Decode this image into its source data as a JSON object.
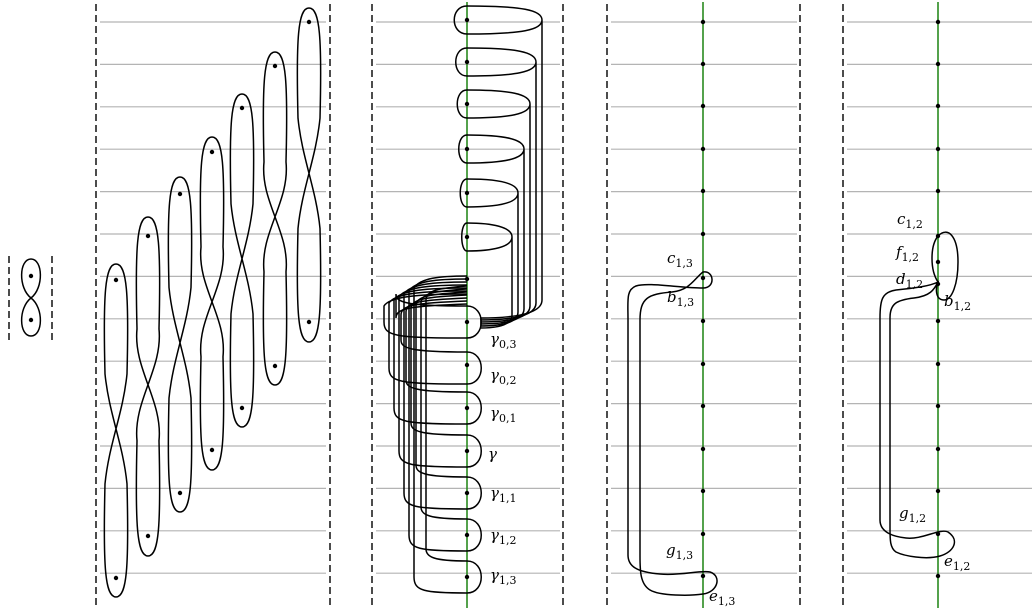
{
  "labels": {
    "gamma_0_3": {
      "base": "γ",
      "sub": "0,3"
    },
    "gamma_0_2": {
      "base": "γ",
      "sub": "0,2"
    },
    "gamma_0_1": {
      "base": "γ",
      "sub": "0,1"
    },
    "gamma": {
      "base": "γ",
      "sub": ""
    },
    "gamma_1_1": {
      "base": "γ",
      "sub": "1,1"
    },
    "gamma_1_2": {
      "base": "γ",
      "sub": "1,2"
    },
    "gamma_1_3": {
      "base": "γ",
      "sub": "1,3"
    },
    "c_1_3": {
      "base": "c",
      "sub": "1,3"
    },
    "b_1_3": {
      "base": "b",
      "sub": "1,3"
    },
    "g_1_3": {
      "base": "g",
      "sub": "1,3"
    },
    "e_1_3": {
      "base": "e",
      "sub": "1,3"
    },
    "c_1_2": {
      "base": "c",
      "sub": "1,2"
    },
    "f_1_2": {
      "base": "f",
      "sub": "1,2"
    },
    "d_1_2": {
      "base": "d",
      "sub": "1,2"
    },
    "b_1_2": {
      "base": "b",
      "sub": "1,2"
    },
    "g_1_2": {
      "base": "g",
      "sub": "1,2"
    },
    "e_1_2": {
      "base": "e",
      "sub": "1,2"
    }
  },
  "colors": {
    "arc": "#2a8a1f",
    "guide_lines": "#b4b4b4",
    "curves": "#000000"
  }
}
